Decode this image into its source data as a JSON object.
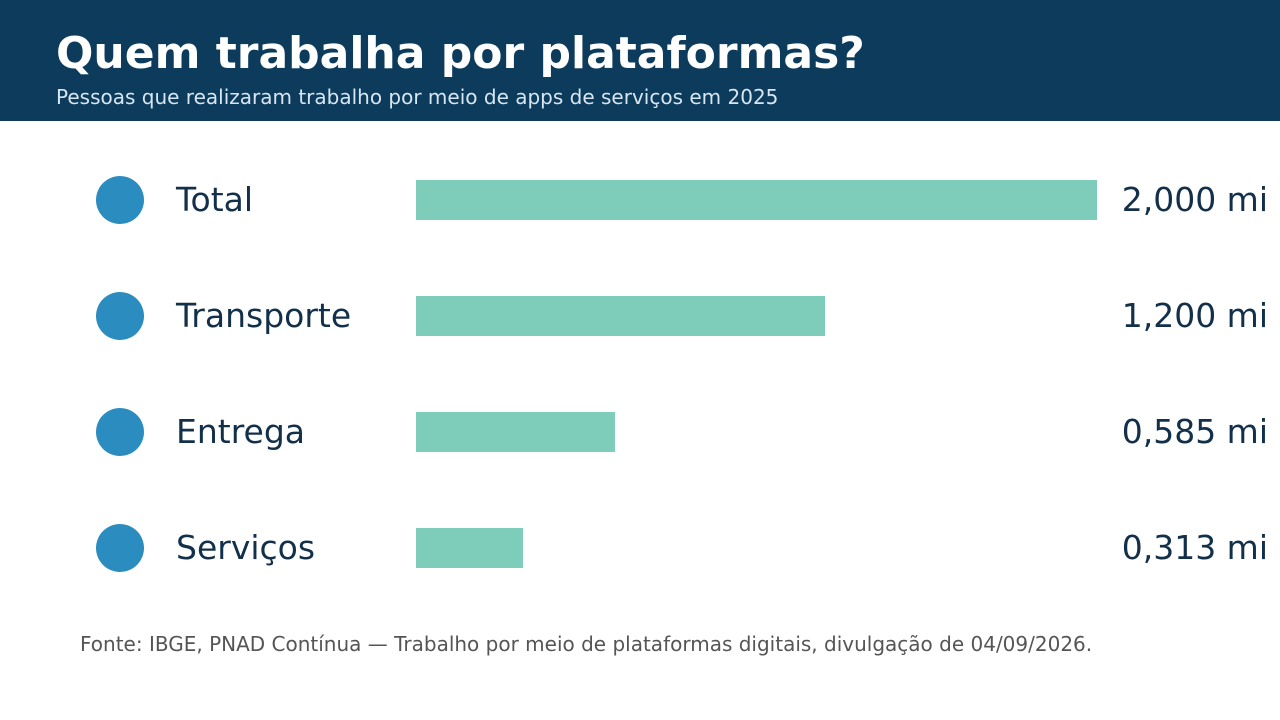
{
  "header": {
    "title": "Quem trabalha por plataformas?",
    "subtitle": "Pessoas que realizaram trabalho por meio de apps de serviços em 2025"
  },
  "chart_data": {
    "type": "bar",
    "orientation": "horizontal",
    "categories": [
      "Total",
      "Transporte",
      "Entrega",
      "Serviços"
    ],
    "values": [
      2.0,
      1.2,
      0.585,
      0.313
    ],
    "value_labels": [
      "2,000 mi",
      "1,200 mi",
      "0,585 mi",
      "0,313 mi"
    ],
    "unit": "mi",
    "xlim": [
      0,
      2.0
    ],
    "grid": false,
    "bar_color": "#7ecdba",
    "marker_color": "#2b8cc0"
  },
  "footer": {
    "source": "Fonte: IBGE, PNAD Contínua — Trabalho por meio de plataformas digitais, divulgação de 04/09/2026."
  },
  "colors": {
    "header_bg": "#0d3b5c",
    "text_dark": "#13304a"
  }
}
